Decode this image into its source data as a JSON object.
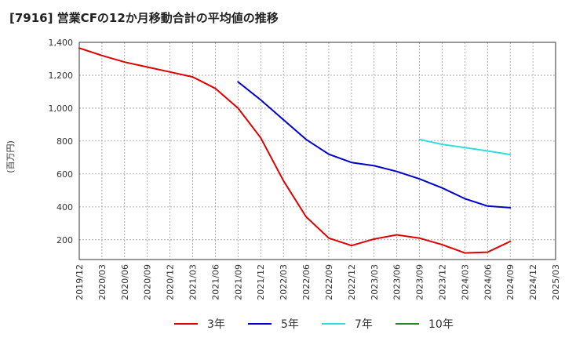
{
  "title": "[7916]  営業CFの12か月移動合計の平均値の推移",
  "chart_data": {
    "type": "line",
    "title": "[7916]  営業CFの12か月移動合計の平均値の推移",
    "ylabel": "(百万円)",
    "xlabel": "",
    "ylim": [
      80,
      1400
    ],
    "yticks": [
      200,
      400,
      600,
      800,
      1000,
      1200,
      1400
    ],
    "ytick_labels": [
      "200",
      "400",
      "600",
      "800",
      "1,000",
      "1,200",
      "1,400"
    ],
    "x_categories": [
      "2019/12",
      "2020/03",
      "2020/06",
      "2020/09",
      "2020/12",
      "2021/03",
      "2021/06",
      "2021/09",
      "2021/12",
      "2022/03",
      "2022/06",
      "2022/09",
      "2022/12",
      "2023/03",
      "2023/06",
      "2023/09",
      "2023/12",
      "2024/03",
      "2024/06",
      "2024/09",
      "2024/12",
      "2025/03"
    ],
    "grid": true,
    "legend_position": "bottom",
    "series": [
      {
        "name": "3年",
        "color": "#dd0000",
        "x_index": [
          0,
          1,
          2,
          3,
          4,
          5,
          6,
          7,
          8,
          9,
          10,
          11,
          12,
          13,
          14,
          15,
          16,
          17,
          18,
          19
        ],
        "values": [
          1365,
          1320,
          1280,
          1250,
          1220,
          1190,
          1120,
          1000,
          820,
          560,
          340,
          210,
          165,
          205,
          230,
          210,
          170,
          120,
          125,
          190
        ]
      },
      {
        "name": "5年",
        "color": "#0000cc",
        "x_index": [
          7,
          8,
          9,
          10,
          11,
          12,
          13,
          14,
          15,
          16,
          17,
          18,
          19
        ],
        "values": [
          1160,
          1050,
          930,
          810,
          720,
          670,
          650,
          615,
          570,
          515,
          450,
          405,
          395
        ]
      },
      {
        "name": "7年",
        "color": "#33dddd",
        "x_index": [
          15,
          16,
          17,
          18,
          19
        ],
        "values": [
          810,
          780,
          760,
          740,
          718
        ]
      },
      {
        "name": "10年",
        "color": "#228822",
        "x_index": [],
        "values": []
      }
    ]
  }
}
